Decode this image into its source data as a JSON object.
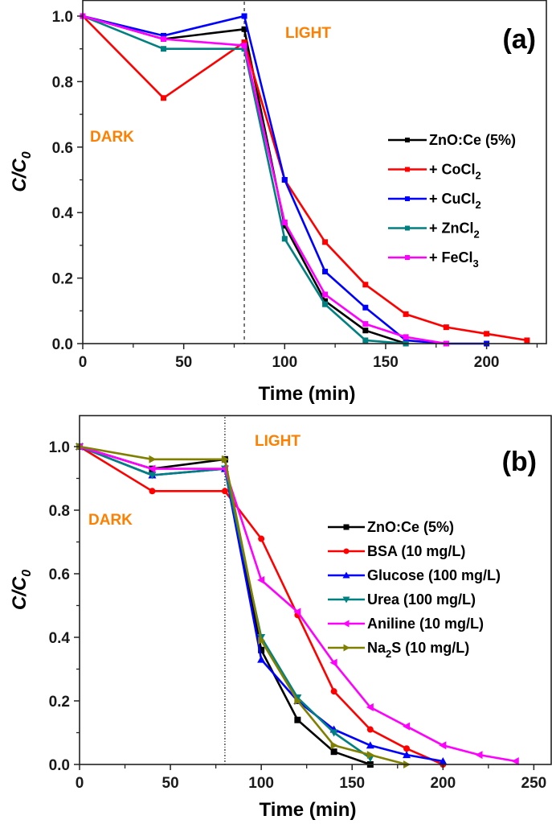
{
  "chart_data": [
    {
      "id": "a",
      "type": "line",
      "panel_label": "(a)",
      "xlabel": "Time (min)",
      "ylabel_main": "C/C",
      "ylabel_sub": "0",
      "xlim": [
        0,
        230
      ],
      "ylim": [
        0,
        1.0
      ],
      "xticks": [
        0,
        50,
        100,
        150,
        200
      ],
      "xticks_minor": [
        25,
        75,
        125,
        175,
        225
      ],
      "yticks": [
        0.0,
        0.2,
        0.4,
        0.6,
        0.8,
        1.0
      ],
      "yticks_minor": [
        0.1,
        0.3,
        0.5,
        0.7,
        0.9
      ],
      "ytick_labels": [
        "0.0",
        "0.2",
        "0.4",
        "0.6",
        "0.8",
        "1.0"
      ],
      "xtick_labels": [
        "0",
        "50",
        "100",
        "150",
        "200"
      ],
      "vline_x": 80,
      "annotations": [
        {
          "text": "DARK",
          "position": "left-middle"
        },
        {
          "text": "LIGHT",
          "position": "top-center"
        }
      ],
      "legend_position": "right-middle",
      "grid": false,
      "series": [
        {
          "name": "ZnO:Ce (5%)",
          "name_main": "ZnO:Ce (5%)",
          "name_sub": "",
          "color": "#000000",
          "marker": "square",
          "x": [
            0,
            40,
            80,
            100,
            120,
            140,
            160
          ],
          "y": [
            1.0,
            0.93,
            0.96,
            0.36,
            0.13,
            0.04,
            0.0
          ]
        },
        {
          "name": "+ CoCl2",
          "name_main": "+ CoCl",
          "name_sub": "2",
          "color": "#ff0000",
          "marker": "square",
          "x": [
            0,
            40,
            80,
            100,
            120,
            140,
            160,
            180,
            200,
            220
          ],
          "y": [
            1.0,
            0.75,
            0.92,
            0.5,
            0.31,
            0.18,
            0.09,
            0.05,
            0.03,
            0.01
          ]
        },
        {
          "name": "+ CuCl2",
          "name_main": "+ CuCl",
          "name_sub": "2",
          "color": "#0000ff",
          "marker": "square",
          "x": [
            0,
            40,
            80,
            100,
            120,
            140,
            160,
            180,
            200
          ],
          "y": [
            1.0,
            0.94,
            1.0,
            0.5,
            0.22,
            0.11,
            0.01,
            0.0,
            0.0
          ]
        },
        {
          "name": "+ ZnCl2",
          "name_main": "+ ZnCl",
          "name_sub": "2",
          "color": "#008080",
          "marker": "square",
          "x": [
            0,
            40,
            80,
            100,
            120,
            140,
            160
          ],
          "y": [
            1.0,
            0.9,
            0.9,
            0.32,
            0.12,
            0.01,
            0.0
          ]
        },
        {
          "name": "+ FeCl3",
          "name_main": "+ FeCl",
          "name_sub": "3",
          "color": "#ff00ff",
          "marker": "square",
          "x": [
            0,
            40,
            80,
            100,
            120,
            140,
            160,
            180
          ],
          "y": [
            1.0,
            0.93,
            0.91,
            0.37,
            0.15,
            0.06,
            0.02,
            0.0
          ]
        }
      ]
    },
    {
      "id": "b",
      "type": "line",
      "panel_label": "(b)",
      "xlabel": "Time (min)",
      "ylabel_main": "C/C",
      "ylabel_sub": "0",
      "xlim": [
        0,
        260
      ],
      "ylim": [
        0,
        1.1
      ],
      "xticks": [
        0,
        50,
        100,
        150,
        200,
        250
      ],
      "xticks_minor": [
        25,
        75,
        125,
        175,
        225
      ],
      "yticks": [
        0.0,
        0.2,
        0.4,
        0.6,
        0.8,
        1.0
      ],
      "yticks_minor": [
        0.1,
        0.3,
        0.5,
        0.7,
        0.9
      ],
      "ytick_labels": [
        "0.0",
        "0.2",
        "0.4",
        "0.6",
        "0.8",
        "1.0"
      ],
      "xtick_labels": [
        "0",
        "50",
        "100",
        "150",
        "200",
        "250"
      ],
      "vline_x": 80,
      "annotations": [
        {
          "text": "DARK",
          "position": "left-middle"
        },
        {
          "text": "LIGHT",
          "position": "top-center"
        }
      ],
      "legend_position": "right-middle",
      "grid": false,
      "series": [
        {
          "name": "ZnO:Ce (5%)",
          "name_main": "ZnO:Ce (5%)",
          "name_pre": "",
          "name_sub": "",
          "name_post": "",
          "color": "#000000",
          "marker": "square",
          "x": [
            0,
            40,
            80,
            100,
            120,
            140,
            160
          ],
          "y": [
            1.0,
            0.93,
            0.96,
            0.36,
            0.14,
            0.04,
            0.0
          ]
        },
        {
          "name": "BSA (10 mg/L)",
          "name_main": "BSA (10 mg/L)",
          "color": "#ff0000",
          "marker": "circle",
          "x": [
            0,
            40,
            80,
            100,
            120,
            140,
            160,
            180,
            200
          ],
          "y": [
            1.0,
            0.86,
            0.86,
            0.71,
            0.47,
            0.23,
            0.11,
            0.05,
            0.0
          ]
        },
        {
          "name": "Glucose (100 mg/L)",
          "name_main": "Glucose (100 mg/L)",
          "color": "#0000ff",
          "marker": "triangle-up",
          "x": [
            0,
            40,
            80,
            100,
            120,
            140,
            160,
            180,
            200
          ],
          "y": [
            1.0,
            0.91,
            0.93,
            0.33,
            0.2,
            0.11,
            0.06,
            0.03,
            0.01
          ]
        },
        {
          "name": "Urea (100 mg/L)",
          "name_main": "Urea (100 mg/L)",
          "color": "#008080",
          "marker": "triangle-down",
          "x": [
            0,
            40,
            80,
            100,
            120,
            140,
            160
          ],
          "y": [
            1.0,
            0.91,
            0.93,
            0.4,
            0.21,
            0.1,
            0.02
          ]
        },
        {
          "name": "Aniline (10 mg/L)",
          "name_main": "Aniline (10 mg/L)",
          "color": "#ff00ff",
          "marker": "triangle-left",
          "x": [
            0,
            40,
            80,
            100,
            120,
            140,
            160,
            180,
            200,
            220,
            240
          ],
          "y": [
            1.0,
            0.93,
            0.93,
            0.58,
            0.48,
            0.32,
            0.18,
            0.12,
            0.06,
            0.03,
            0.01
          ]
        },
        {
          "name": "Na2S (10 mg/L)",
          "name_main": "Na",
          "name_sub": "2",
          "name_post": "S (10 mg/L)",
          "color": "#808000",
          "marker": "triangle-right",
          "x": [
            0,
            40,
            80,
            100,
            120,
            140,
            160,
            180
          ],
          "y": [
            1.0,
            0.96,
            0.96,
            0.39,
            0.2,
            0.06,
            0.03,
            0.0
          ]
        }
      ]
    }
  ]
}
